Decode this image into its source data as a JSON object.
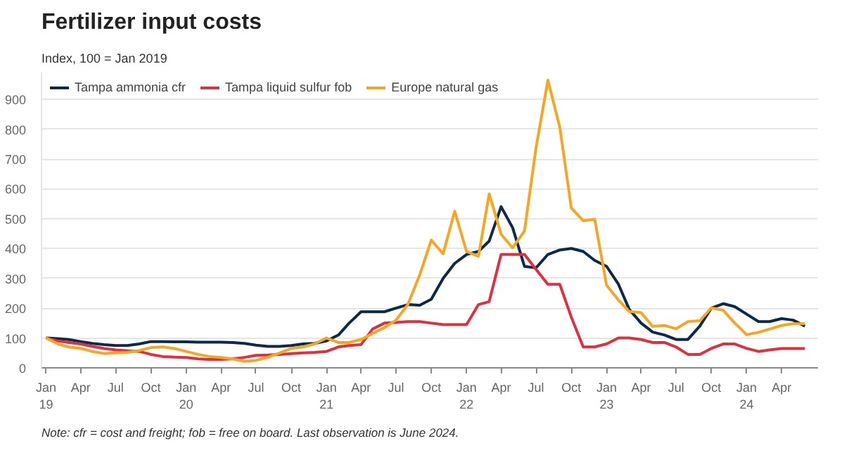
{
  "chart_data": {
    "type": "line",
    "title": "Fertilizer input costs",
    "subtitle": "Index, 100 = Jan 2019",
    "x": [
      "2019-01",
      "2019-02",
      "2019-03",
      "2019-04",
      "2019-05",
      "2019-06",
      "2019-07",
      "2019-08",
      "2019-09",
      "2019-10",
      "2019-11",
      "2019-12",
      "2020-01",
      "2020-02",
      "2020-03",
      "2020-04",
      "2020-05",
      "2020-06",
      "2020-07",
      "2020-08",
      "2020-09",
      "2020-10",
      "2020-11",
      "2020-12",
      "2021-01",
      "2021-02",
      "2021-03",
      "2021-04",
      "2021-05",
      "2021-06",
      "2021-07",
      "2021-08",
      "2021-09",
      "2021-10",
      "2021-11",
      "2021-12",
      "2022-01",
      "2022-02",
      "2022-03",
      "2022-04",
      "2022-05",
      "2022-06",
      "2022-07",
      "2022-08",
      "2022-09",
      "2022-10",
      "2022-11",
      "2022-12",
      "2023-01",
      "2023-02",
      "2023-03",
      "2023-04",
      "2023-05",
      "2023-06",
      "2023-07",
      "2023-08",
      "2023-09",
      "2023-10",
      "2023-11",
      "2023-12",
      "2024-01",
      "2024-02",
      "2024-03",
      "2024-04",
      "2024-05",
      "2024-06"
    ],
    "series": [
      {
        "name": "Tampa ammonia cfr",
        "color": "#0b2a4a",
        "values": [
          100,
          98,
          95,
          88,
          82,
          78,
          75,
          75,
          80,
          88,
          88,
          87,
          87,
          86,
          86,
          86,
          85,
          82,
          76,
          72,
          72,
          75,
          80,
          82,
          90,
          110,
          150,
          188,
          188,
          188,
          200,
          212,
          210,
          230,
          300,
          350,
          380,
          390,
          425,
          540,
          470,
          340,
          335,
          380,
          395,
          400,
          390,
          360,
          340,
          280,
          196,
          150,
          120,
          110,
          95,
          95,
          140,
          200,
          215,
          205,
          180,
          155,
          155,
          165,
          160,
          140
        ]
      },
      {
        "name": "Tampa liquid sulfur fob",
        "color": "#e03040",
        "values": [
          100,
          90,
          85,
          80,
          72,
          65,
          60,
          57,
          55,
          45,
          38,
          36,
          35,
          30,
          28,
          28,
          30,
          35,
          42,
          43,
          45,
          48,
          50,
          52,
          55,
          70,
          75,
          78,
          130,
          150,
          152,
          155,
          155,
          150,
          145,
          145,
          145,
          212,
          222,
          380,
          380,
          380,
          330,
          280,
          280,
          170,
          70,
          70,
          80,
          100,
          100,
          95,
          85,
          85,
          70,
          45,
          45,
          65,
          80,
          80,
          65,
          55,
          60,
          65,
          65,
          65
        ]
      },
      {
        "name": "Europe natural gas",
        "color": "#f5a623",
        "values": [
          100,
          80,
          70,
          65,
          55,
          48,
          50,
          52,
          58,
          68,
          70,
          65,
          55,
          45,
          38,
          35,
          30,
          22,
          25,
          35,
          50,
          65,
          70,
          80,
          100,
          85,
          85,
          95,
          115,
          135,
          160,
          212,
          312,
          428,
          382,
          525,
          390,
          374,
          583,
          448,
          402,
          459,
          737,
          964,
          807,
          536,
          493,
          498,
          277,
          227,
          189,
          185,
          139,
          142,
          131,
          155,
          158,
          201,
          193,
          150,
          111,
          119,
          130,
          142,
          148,
          148
        ]
      }
    ],
    "ylim": [
      0,
      990
    ],
    "yticks": [
      0,
      100,
      200,
      300,
      400,
      500,
      600,
      700,
      800,
      900
    ],
    "xlim": [
      "2018-12-20",
      "2024-07-05"
    ],
    "xticks": [
      {
        "value": "2019-01",
        "label": "Jan\n19"
      },
      {
        "value": "2019-04",
        "label": "Apr"
      },
      {
        "value": "2019-07",
        "label": "Jul"
      },
      {
        "value": "2019-10",
        "label": "Oct"
      },
      {
        "value": "2020-01",
        "label": "Jan\n20"
      },
      {
        "value": "2020-04",
        "label": "Apr"
      },
      {
        "value": "2020-07",
        "label": "Jul"
      },
      {
        "value": "2020-10",
        "label": "Oct"
      },
      {
        "value": "2021-01",
        "label": "Jan\n21"
      },
      {
        "value": "2021-04",
        "label": "Apr"
      },
      {
        "value": "2021-07",
        "label": "Jul"
      },
      {
        "value": "2021-10",
        "label": "Oct"
      },
      {
        "value": "2022-01",
        "label": "Jan\n22"
      },
      {
        "value": "2022-04",
        "label": "Apr"
      },
      {
        "value": "2022-07",
        "label": "Jul"
      },
      {
        "value": "2022-10",
        "label": "Oct"
      },
      {
        "value": "2023-01",
        "label": "Jan\n23"
      },
      {
        "value": "2023-04",
        "label": "Apr"
      },
      {
        "value": "2023-07",
        "label": "Jul"
      },
      {
        "value": "2023-10",
        "label": "Oct"
      },
      {
        "value": "2024-01",
        "label": "Jan\n24"
      },
      {
        "value": "2024-04",
        "label": "Apr"
      }
    ],
    "grid": "y",
    "legend": "top left",
    "line_style": "solid",
    "annotations": [
      "Note: cfr = cost and freight; fob = free on board. Last observation is June 2024."
    ]
  }
}
